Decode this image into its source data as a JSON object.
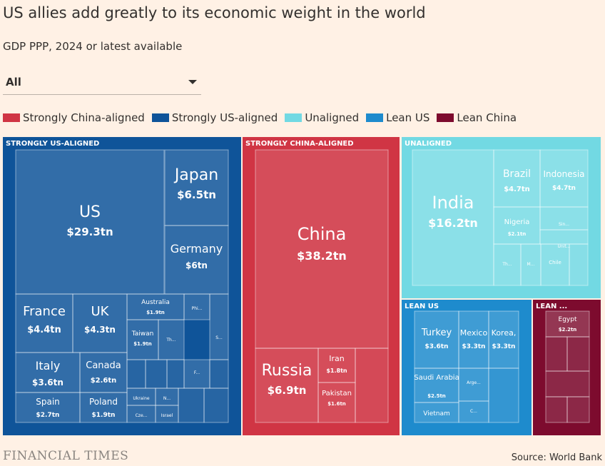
{
  "header": {
    "title": "US allies add greatly to its economic weight in the world",
    "subtitle": "GDP PPP, 2024 or latest available"
  },
  "filter": {
    "selected": "All"
  },
  "legend": [
    {
      "label": "Strongly China-aligned",
      "color": "#d03544"
    },
    {
      "label": "Strongly US-aligned",
      "color": "#0f5499"
    },
    {
      "label": "Unaligned",
      "color": "#72d9e3"
    },
    {
      "label": "Lean US",
      "color": "#1e8bcd"
    },
    {
      "label": "Lean China",
      "color": "#7d0b2e"
    }
  ],
  "footer": {
    "brand": "FINANCIAL TIMES",
    "source": "Source: World Bank"
  },
  "chart_data": {
    "type": "treemap",
    "units": "$tn",
    "groups": [
      {
        "name": "STRONGLY US-ALIGNED",
        "color": "#0f5499",
        "items": [
          {
            "label": "US",
            "value": 29.3,
            "value_label": "$29.3tn"
          },
          {
            "label": "Japan",
            "value": 6.5,
            "value_label": "$6.5tn"
          },
          {
            "label": "Germany",
            "value": 6.0,
            "value_label": "$6tn"
          },
          {
            "label": "France",
            "value": 4.4,
            "value_label": "$4.4tn"
          },
          {
            "label": "UK",
            "value": 4.3,
            "value_label": "$4.3tn"
          },
          {
            "label": "Italy",
            "value": 3.6,
            "value_label": "$3.6tn"
          },
          {
            "label": "Canada",
            "value": 2.6,
            "value_label": "$2.6tn"
          },
          {
            "label": "Spain",
            "value": 2.7,
            "value_label": "$2.7tn"
          },
          {
            "label": "Poland",
            "value": 1.9,
            "value_label": "$1.9tn"
          },
          {
            "label": "Australia",
            "value": 1.9,
            "value_label": "$1.9tn"
          },
          {
            "label": "Taiwan",
            "value": 1.9,
            "value_label": "$1.9tn"
          },
          {
            "label": "Phi..."
          },
          {
            "label": "Th..."
          },
          {
            "label": "S..."
          },
          {
            "label": "F..."
          },
          {
            "label": "Ukraine"
          },
          {
            "label": "N..."
          },
          {
            "label": "Cze..."
          },
          {
            "label": "Israel"
          }
        ]
      },
      {
        "name": "STRONGLY CHINA-ALIGNED",
        "color": "#d03544",
        "items": [
          {
            "label": "China",
            "value": 38.2,
            "value_label": "$38.2tn"
          },
          {
            "label": "Russia",
            "value": 6.9,
            "value_label": "$6.9tn"
          },
          {
            "label": "Iran",
            "value": 1.8,
            "value_label": "$1.8tn"
          },
          {
            "label": "Pakistan",
            "value": 1.6,
            "value_label": "$1.6tn"
          }
        ]
      },
      {
        "name": "UNALIGNED",
        "color": "#72d9e3",
        "items": [
          {
            "label": "India",
            "value": 16.2,
            "value_label": "$16.2tn"
          },
          {
            "label": "Brazil",
            "value": 4.7,
            "value_label": "$4.7tn"
          },
          {
            "label": "Indonesia",
            "value": 4.7,
            "value_label": "$4.7tn"
          },
          {
            "label": "Nigeria",
            "value": 2.1,
            "value_label": "$2.1tn"
          },
          {
            "label": "Sin..."
          },
          {
            "label": "Unit..."
          },
          {
            "label": "Th..."
          },
          {
            "label": "M..."
          },
          {
            "label": "Chile"
          }
        ]
      },
      {
        "name": "LEAN US",
        "color": "#1e8bcd",
        "items": [
          {
            "label": "Turkey",
            "value": 3.6,
            "value_label": "$3.6tn"
          },
          {
            "label": "Mexico",
            "value": 3.3,
            "value_label": "$3.3tn"
          },
          {
            "label": "Korea,",
            "value": 3.3,
            "value_label": "$3.3tn"
          },
          {
            "label": "Saudi Arabia",
            "value": 2.5,
            "value_label": "$2.5tn"
          },
          {
            "label": "Arge..."
          },
          {
            "label": "C..."
          },
          {
            "label": "Vietnam"
          }
        ]
      },
      {
        "name": "LEAN ...",
        "color": "#7d0b2e",
        "items": [
          {
            "label": "Egypt",
            "value": 2.2,
            "value_label": "$2.2tn"
          }
        ]
      }
    ]
  }
}
